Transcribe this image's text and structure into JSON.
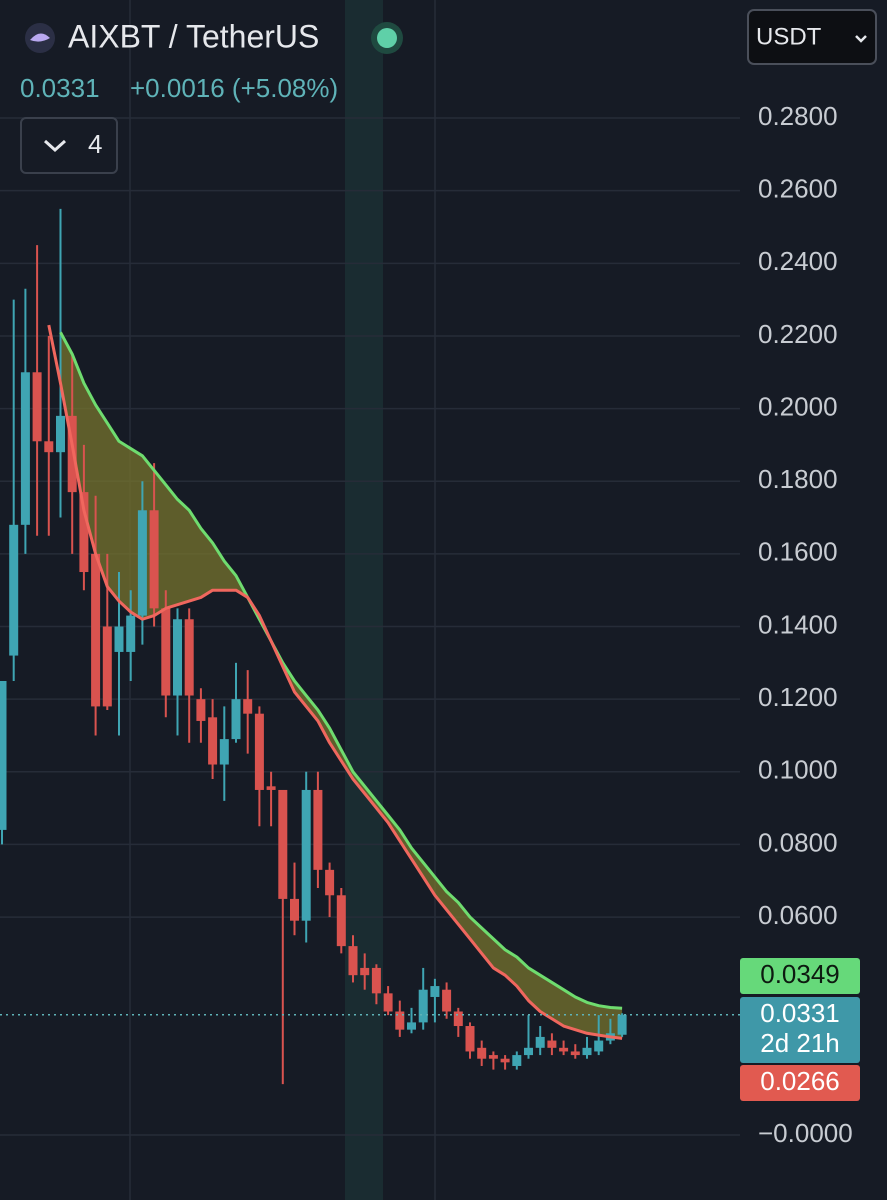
{
  "chart_data": {
    "type": "candlestick",
    "symbol": "AIXBT / TetherUS",
    "last_price": 0.0331,
    "change": "+0.0016 (+5.08%)",
    "indicator_count": 4,
    "quote_currency": "USDT",
    "up_color": "#3fa5b3",
    "down_color": "#d9534f",
    "grid": true,
    "ylim": [
      -0.0179,
      0.3125
    ],
    "yticks": [
      {
        "value": 0.28,
        "label": "0.2800"
      },
      {
        "value": 0.26,
        "label": "0.2600"
      },
      {
        "value": 0.24,
        "label": "0.2400"
      },
      {
        "value": 0.22,
        "label": "0.2200"
      },
      {
        "value": 0.2,
        "label": "0.2000"
      },
      {
        "value": 0.18,
        "label": "0.1800"
      },
      {
        "value": 0.16,
        "label": "0.1600"
      },
      {
        "value": 0.14,
        "label": "0.1400"
      },
      {
        "value": 0.12,
        "label": "0.1200"
      },
      {
        "value": 0.1,
        "label": "0.1000"
      },
      {
        "value": 0.08,
        "label": "0.0800"
      },
      {
        "value": 0.06,
        "label": "0.0600"
      },
      {
        "value": 0,
        "label": "−0.0000"
      }
    ],
    "open": [
      0.084,
      0.132,
      0.168,
      0.21,
      0.191,
      0.188,
      0.198,
      0.177,
      0.16,
      0.14,
      0.133,
      0.133,
      0.143,
      0.172,
      0.145,
      0.121,
      0.142,
      0.12,
      0.115,
      0.102,
      0.109,
      0.12,
      0.116,
      0.096,
      0.095,
      0.065,
      0.059,
      0.095,
      0.073,
      0.066,
      0.052,
      0.046,
      0.046,
      0.039,
      0.034,
      0.029,
      0.031,
      0.038,
      0.04,
      0.034,
      0.03,
      0.024,
      0.022,
      0.021,
      0.019,
      0.022,
      0.024,
      0.026,
      0.024,
      0.023,
      0.022,
      0.023,
      0.026,
      0.0276
    ],
    "high": [
      0.125,
      0.23,
      0.233,
      0.245,
      0.22,
      0.255,
      0.215,
      0.19,
      0.176,
      0.16,
      0.155,
      0.15,
      0.18,
      0.185,
      0.15,
      0.145,
      0.145,
      0.123,
      0.12,
      0.118,
      0.13,
      0.128,
      0.118,
      0.1,
      0.095,
      0.075,
      0.1,
      0.1,
      0.075,
      0.068,
      0.055,
      0.05,
      0.047,
      0.041,
      0.037,
      0.035,
      0.046,
      0.043,
      0.042,
      0.035,
      0.031,
      0.026,
      0.023,
      0.022,
      0.023,
      0.033,
      0.03,
      0.028,
      0.026,
      0.025,
      0.027,
      0.033,
      0.032,
      0.0335
    ],
    "low": [
      0.08,
      0.125,
      0.16,
      0.165,
      0.165,
      0.17,
      0.16,
      0.15,
      0.11,
      0.117,
      0.11,
      0.125,
      0.135,
      0.14,
      0.115,
      0.11,
      0.108,
      0.108,
      0.098,
      0.092,
      0.108,
      0.105,
      0.085,
      0.085,
      0.014,
      0.055,
      0.053,
      0.068,
      0.06,
      0.05,
      0.042,
      0.04,
      0.036,
      0.033,
      0.027,
      0.028,
      0.029,
      0.031,
      0.032,
      0.027,
      0.021,
      0.019,
      0.018,
      0.018,
      0.018,
      0.021,
      0.022,
      0.022,
      0.022,
      0.021,
      0.021,
      0.022,
      0.025,
      0.027
    ],
    "close": [
      0.125,
      0.168,
      0.21,
      0.191,
      0.188,
      0.198,
      0.177,
      0.155,
      0.118,
      0.118,
      0.14,
      0.143,
      0.172,
      0.145,
      0.121,
      0.142,
      0.121,
      0.114,
      0.102,
      0.109,
      0.12,
      0.116,
      0.095,
      0.095,
      0.065,
      0.059,
      0.095,
      0.073,
      0.066,
      0.052,
      0.044,
      0.044,
      0.039,
      0.034,
      0.029,
      0.031,
      0.04,
      0.041,
      0.034,
      0.03,
      0.023,
      0.021,
      0.021,
      0.02,
      0.022,
      0.024,
      0.027,
      0.024,
      0.023,
      0.022,
      0.024,
      0.026,
      0.028,
      0.0331
    ],
    "overlays": [
      {
        "color": "#6fdc6f",
        "values": [
          null,
          null,
          null,
          null,
          null,
          0.221,
          0.215,
          0.207,
          0.201,
          0.196,
          0.191,
          0.189,
          0.187,
          0.183,
          0.179,
          0.175,
          0.172,
          0.167,
          0.163,
          0.158,
          0.154,
          0.148,
          0.142,
          0.136,
          0.13,
          0.125,
          0.121,
          0.117,
          0.112,
          0.106,
          0.1,
          0.096,
          0.092,
          0.088,
          0.084,
          0.079,
          0.075,
          0.071,
          0.067,
          0.064,
          0.06,
          0.057,
          0.054,
          0.051,
          0.049,
          0.046,
          0.044,
          0.042,
          0.04,
          0.038,
          0.0365,
          0.0356,
          0.0351,
          0.0349
        ]
      },
      {
        "color": "#f0675e",
        "values": [
          null,
          null,
          null,
          null,
          0.223,
          0.207,
          0.19,
          0.172,
          0.16,
          0.151,
          0.147,
          0.144,
          0.142,
          0.143,
          0.145,
          0.146,
          0.147,
          0.148,
          0.15,
          0.15,
          0.15,
          0.148,
          0.143,
          0.136,
          0.129,
          0.122,
          0.118,
          0.114,
          0.108,
          0.103,
          0.098,
          0.094,
          0.09,
          0.086,
          0.081,
          0.076,
          0.071,
          0.066,
          0.062,
          0.058,
          0.054,
          0.05,
          0.046,
          0.044,
          0.041,
          0.037,
          0.034,
          0.032,
          0.03,
          0.029,
          0.028,
          0.0275,
          0.027,
          0.0266
        ]
      }
    ],
    "price_labels": [
      {
        "value": 0.0349,
        "color": "#66d97a"
      },
      {
        "value": 0.0331,
        "color": "#3f98a8",
        "countdown": "2d 21h"
      },
      {
        "value": 0.0266,
        "color": "#e15a50"
      }
    ]
  }
}
